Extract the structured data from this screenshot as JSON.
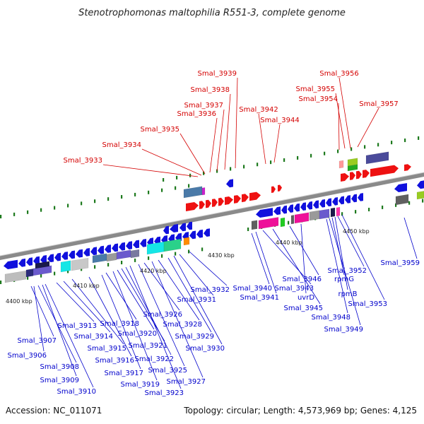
{
  "title": "Stenotrophomonas maltophilia R551-3, complete genome",
  "footer": {
    "accession": "Accession: NC_011071",
    "summary": "Topology: circular; Length: 4,573,969 bp; Genes: 4,125"
  },
  "colors": {
    "upper_labels": "#d40000",
    "lower_labels": "#0000cc",
    "backbone": "#8a8a8a",
    "tick": "#1e7a1e"
  },
  "scale_labels": [
    "4400 kbp",
    "4410 kbp",
    "4420 kbp",
    "4430 kbp",
    "4440 kbp",
    "4450 kbp"
  ],
  "upper_genes": [
    "Smal_3933",
    "Smal_3934",
    "Smal_3935",
    "Smal_3936",
    "Smal_3937",
    "Smal_3938",
    "Smal_3939",
    "Smal_3942",
    "Smal_3944",
    "Smal_3954",
    "Smal_3955",
    "Smal_3956",
    "Smal_3957"
  ],
  "lower_genes": [
    "Smal_3907",
    "Smal_3906",
    "Smal_3908",
    "Smal_3909",
    "Smal_3910",
    "Smal_3913",
    "Smal_3914",
    "Smal_3915",
    "Smal_3916",
    "Smal_3917",
    "Smal_3918",
    "Smal_3919",
    "Smal_3920",
    "Smal_3921",
    "Smal_3922",
    "Smal_3923",
    "Smal_3925",
    "Smal_3926",
    "Smal_3927",
    "Smal_3928",
    "Smal_3929",
    "Smal_3930",
    "Smal_3931",
    "Smal_3932",
    "Smal_3940",
    "Smal_3941",
    "Smal_3943",
    "Smal_3945",
    "Smal_3946",
    "uvrD",
    "rpmG",
    "rpmB",
    "Smal_3948",
    "Smal_3949",
    "Smal_3952",
    "Smal_3953",
    "Smal_3959"
  ]
}
